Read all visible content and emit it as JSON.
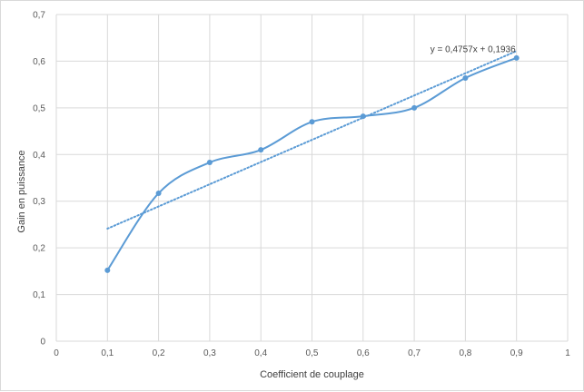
{
  "chart_data": {
    "type": "line",
    "title": "",
    "xlabel": "Coefficient de couplage",
    "ylabel": "Gain en puissance",
    "xlim": [
      0,
      1
    ],
    "ylim": [
      0,
      0.7
    ],
    "x_ticks": [
      "0",
      "0,1",
      "0,2",
      "0,3",
      "0,4",
      "0,5",
      "0,6",
      "0,7",
      "0,8",
      "0,9",
      "1"
    ],
    "y_ticks": [
      "0",
      "0,1",
      "0,2",
      "0,3",
      "0,4",
      "0,5",
      "0,6",
      "0,7"
    ],
    "grid": "vertical-and-horizontal",
    "legend": "none",
    "smoothed": true,
    "series": [
      {
        "x": [
          0.1,
          0.2,
          0.3,
          0.4,
          0.5,
          0.6,
          0.7,
          0.8,
          0.9
        ],
        "y": [
          0.152,
          0.317,
          0.383,
          0.41,
          0.47,
          0.482,
          0.5,
          0.564,
          0.607
        ],
        "color": "#5b9bd5"
      }
    ],
    "trendline": {
      "type": "linear",
      "slope": 0.4757,
      "intercept": 0.1936,
      "x_range": [
        0.1,
        0.9
      ],
      "equation": "y = 0,4757x + 0,1936",
      "color": "#5b9bd5",
      "style": "dotted"
    }
  }
}
